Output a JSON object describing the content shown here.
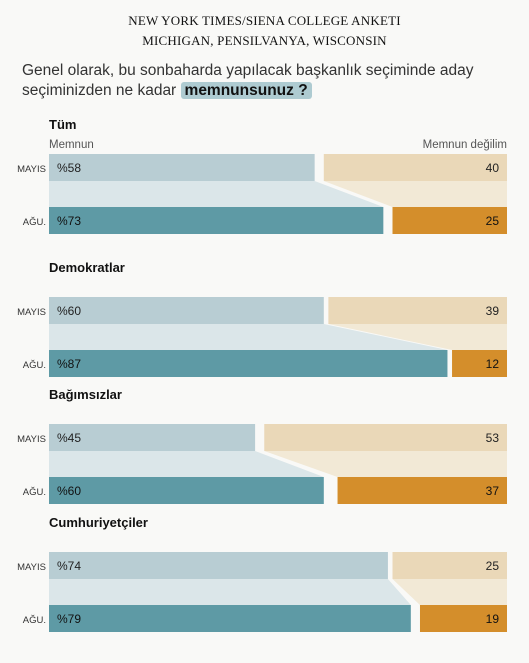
{
  "header": {
    "title_line1": "NEW YORK TIMES/SIENA COLLEGE ANKETI",
    "title_line2": "MICHIGAN, PENSILVANYA, WISCONSIN"
  },
  "question": {
    "text": "Genel olarak, bu sonbaharda yapılacak başkanlık seçiminde aday seçiminizden ne kadar ",
    "highlight": "memnunsunuz ?"
  },
  "colors": {
    "may_satisfied": "#b8cdd3",
    "may_unsatisfied": "#ead8b8",
    "aug_satisfied": "#5e9aa5",
    "aug_unsatisfied": "#d48e2b",
    "connector_satisfied": "#dbe6e9",
    "connector_unsatisfied": "#f2e9d6"
  },
  "chart_data": {
    "type": "bar",
    "orientation": "horizontal-stacked",
    "legend_left": "Memnun",
    "legend_right": "Memnun değilim",
    "period_labels": [
      "MAYIS",
      "AĞU."
    ],
    "groups": [
      {
        "name": "Tüm",
        "may": {
          "satisfied": 58,
          "unsatisfied": 40,
          "satisfied_label": "%58",
          "unsatisfied_label": "40"
        },
        "aug": {
          "satisfied": 73,
          "unsatisfied": 25,
          "satisfied_label": "%73",
          "unsatisfied_label": "25"
        }
      },
      {
        "name": "Demokratlar",
        "may": {
          "satisfied": 60,
          "unsatisfied": 39,
          "satisfied_label": "%60",
          "unsatisfied_label": "39"
        },
        "aug": {
          "satisfied": 87,
          "unsatisfied": 12,
          "satisfied_label": "%87",
          "unsatisfied_label": "12"
        }
      },
      {
        "name": "Bağımsızlar",
        "may": {
          "satisfied": 45,
          "unsatisfied": 53,
          "satisfied_label": "%45",
          "unsatisfied_label": "53"
        },
        "aug": {
          "satisfied": 60,
          "unsatisfied": 37,
          "satisfied_label": "%60",
          "unsatisfied_label": "37"
        }
      },
      {
        "name": "Cumhuriyetçiler",
        "may": {
          "satisfied": 74,
          "unsatisfied": 25,
          "satisfied_label": "%74",
          "unsatisfied_label": "25"
        },
        "aug": {
          "satisfied": 79,
          "unsatisfied": 19,
          "satisfied_label": "%79",
          "unsatisfied_label": "19"
        }
      }
    ]
  }
}
